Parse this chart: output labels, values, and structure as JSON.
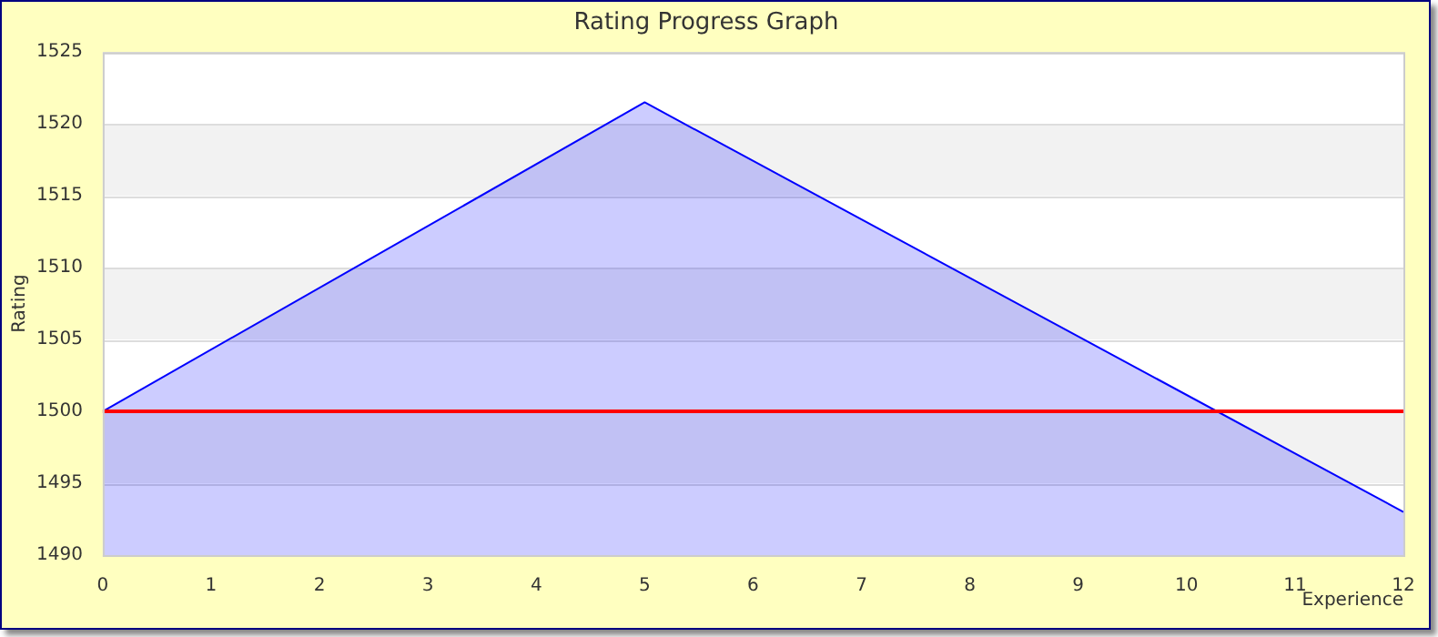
{
  "chart_data": {
    "type": "area",
    "title": "Rating Progress Graph",
    "xlabel": "Experience",
    "ylabel": "Rating",
    "x": [
      0,
      5,
      12
    ],
    "series": [
      {
        "color": "#0000ff",
        "values": [
          1500,
          1521.5,
          1493
        ]
      }
    ],
    "xlim": [
      0,
      12
    ],
    "xticks": [
      0,
      1,
      2,
      3,
      4,
      5,
      6,
      7,
      8,
      9,
      10,
      11,
      12
    ],
    "ylim": [
      1490,
      1525
    ],
    "yticks": [
      1490,
      1495,
      1500,
      1505,
      1510,
      1515,
      1520,
      1525
    ],
    "ref_lines": [
      {
        "axis": "y",
        "value": 1500,
        "color": "#ff0000"
      }
    ],
    "grid": "y",
    "legend": false
  }
}
